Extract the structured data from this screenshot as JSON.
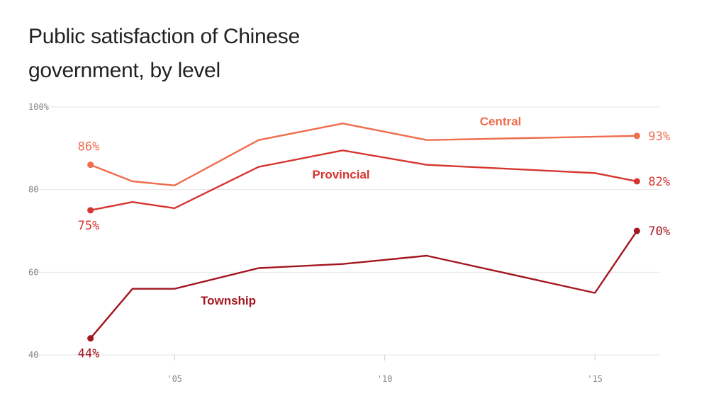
{
  "title_line1": "Public satisfaction of Chinese",
  "title_line2": "government, by level",
  "chart_data": {
    "type": "line",
    "ylim": [
      40,
      100
    ],
    "xlim": [
      2002.5,
      2016.5
    ],
    "yticks": [
      {
        "value": 100,
        "label": "100%"
      },
      {
        "value": 80,
        "label": "80"
      },
      {
        "value": 60,
        "label": "60"
      },
      {
        "value": 40,
        "label": "40"
      }
    ],
    "xticks": [
      {
        "value": 2005,
        "label": "'05"
      },
      {
        "value": 2010,
        "label": "'10"
      },
      {
        "value": 2015,
        "label": "'15"
      }
    ],
    "grid": true,
    "series": [
      {
        "name": "Central",
        "color": "#ef6c4d",
        "x": [
          2003,
          2004,
          2005,
          2007,
          2009,
          2011,
          2016
        ],
        "y": [
          86,
          82,
          81,
          92,
          96,
          92,
          93
        ],
        "start_label": "86%",
        "end_label": "93%"
      },
      {
        "name": "Provincial",
        "color": "#d6352f",
        "x": [
          2003,
          2004,
          2005,
          2007,
          2009,
          2011,
          2015,
          2016
        ],
        "y": [
          75,
          77,
          75.5,
          85.5,
          89.5,
          86,
          84,
          82
        ],
        "start_label": "75%",
        "end_label": "82%"
      },
      {
        "name": "Township",
        "color": "#a3161f",
        "x": [
          2003,
          2004,
          2005,
          2007,
          2009,
          2011,
          2015,
          2016
        ],
        "y": [
          44,
          56,
          56,
          61,
          62,
          64,
          55,
          70
        ],
        "start_label": "44%",
        "end_label": "70%"
      }
    ]
  }
}
